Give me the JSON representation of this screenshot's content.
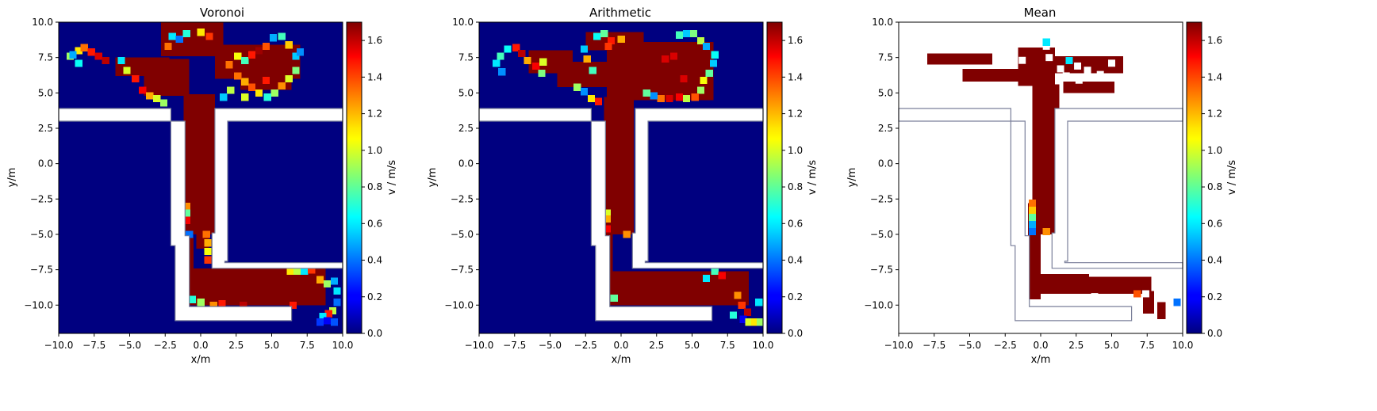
{
  "chart_data": [
    {
      "type": "heatmap",
      "title": "Voronoi",
      "xlabel": "x/m",
      "ylabel": "y/m",
      "xlim": [
        -10,
        10
      ],
      "ylim": [
        -12,
        10
      ],
      "xticks": [
        "−10.0",
        "−7.5",
        "−5.0",
        "−2.5",
        "0.0",
        "2.5",
        "5.0",
        "7.5",
        "10.0"
      ],
      "yticks": [
        "−10.0",
        "−7.5",
        "−5.0",
        "−2.5",
        "0.0",
        "2.5",
        "5.0",
        "7.5",
        "10.0"
      ],
      "colorbar": {
        "label": "v / m/s",
        "range": [
          0,
          1.7
        ],
        "ticks": [
          "0.0",
          "0.2",
          "0.4",
          "0.6",
          "0.8",
          "1.0",
          "1.2",
          "1.4",
          "1.6"
        ]
      },
      "colormap": "jet",
      "background_value": 0.0,
      "regions_value_1_7": [
        [
          -2.8,
          7.6,
          1.6,
          10.0
        ],
        [
          -4.0,
          4.8,
          -0.8,
          7.4
        ],
        [
          -6.0,
          6.2,
          -2.2,
          7.5
        ],
        [
          1.0,
          6.0,
          7.0,
          8.4
        ],
        [
          2.8,
          5.2,
          6.4,
          6.4
        ],
        [
          -1.2,
          -5.0,
          1.0,
          4.9
        ],
        [
          -1.2,
          -10.0,
          -0.5,
          -5.2
        ],
        [
          -1.2,
          -10.0,
          8.8,
          -7.4
        ],
        [
          -0.3,
          -6.0,
          0.6,
          -5.0
        ]
      ],
      "cells": [
        [
          -9.2,
          7.6,
          0.9
        ],
        [
          -8.6,
          8.0,
          1.1
        ],
        [
          -8.2,
          8.2,
          1.3
        ],
        [
          -7.7,
          7.9,
          1.45
        ],
        [
          -7.2,
          7.6,
          1.55
        ],
        [
          -6.7,
          7.3,
          1.6
        ],
        [
          -8.6,
          7.1,
          0.65
        ],
        [
          -9.0,
          7.7,
          0.5
        ],
        [
          -5.6,
          7.3,
          0.6
        ],
        [
          -5.2,
          6.6,
          1.0
        ],
        [
          -4.6,
          6.0,
          1.45
        ],
        [
          -4.1,
          5.2,
          1.5
        ],
        [
          -3.6,
          4.8,
          1.2
        ],
        [
          -3.1,
          4.6,
          1.0
        ],
        [
          -2.6,
          4.3,
          0.9
        ],
        [
          -2.0,
          9.0,
          0.6
        ],
        [
          -1.5,
          8.8,
          0.4
        ],
        [
          -2.3,
          8.3,
          1.3
        ],
        [
          -1.0,
          9.2,
          0.7
        ],
        [
          0.0,
          9.3,
          1.1
        ],
        [
          0.6,
          9.0,
          1.4
        ],
        [
          2.0,
          7.0,
          1.3
        ],
        [
          2.6,
          7.6,
          1.05
        ],
        [
          3.1,
          7.3,
          0.75
        ],
        [
          3.6,
          7.7,
          1.45
        ],
        [
          4.1,
          8.0,
          1.65
        ],
        [
          4.6,
          8.3,
          1.35
        ],
        [
          5.1,
          8.9,
          0.5
        ],
        [
          5.7,
          9.0,
          0.75
        ],
        [
          6.2,
          8.4,
          1.15
        ],
        [
          6.7,
          7.6,
          0.55
        ],
        [
          7.0,
          7.9,
          0.45
        ],
        [
          6.7,
          6.6,
          0.85
        ],
        [
          6.2,
          6.0,
          1.0
        ],
        [
          5.7,
          5.5,
          1.25
        ],
        [
          5.2,
          5.0,
          0.9
        ],
        [
          4.7,
          4.7,
          0.7
        ],
        [
          4.1,
          5.0,
          1.1
        ],
        [
          3.6,
          5.4,
          1.35
        ],
        [
          3.1,
          5.8,
          1.2
        ],
        [
          2.6,
          6.2,
          1.3
        ],
        [
          2.1,
          5.2,
          0.95
        ],
        [
          1.6,
          4.7,
          0.55
        ],
        [
          3.1,
          4.7,
          1.0
        ],
        [
          4.6,
          5.9,
          1.45
        ],
        [
          -1.0,
          -3.0,
          1.25
        ],
        [
          -1.0,
          -3.5,
          0.8
        ],
        [
          -1.0,
          -4.0,
          1.5
        ],
        [
          -0.8,
          -5.0,
          0.4
        ],
        [
          0.4,
          -5.0,
          1.3
        ],
        [
          0.5,
          -5.6,
          1.2
        ],
        [
          0.5,
          -6.2,
          1.05
        ],
        [
          0.5,
          -6.8,
          1.4
        ],
        [
          -0.6,
          -9.6,
          0.7
        ],
        [
          0.0,
          -9.8,
          0.9
        ],
        [
          0.9,
          -10.0,
          1.25
        ],
        [
          1.5,
          -9.9,
          1.45
        ],
        [
          3.0,
          -10.0,
          1.6
        ],
        [
          6.5,
          -10.0,
          1.45
        ],
        [
          6.3,
          -7.6,
          1.1
        ],
        [
          6.8,
          -7.6,
          0.95
        ],
        [
          7.3,
          -7.6,
          0.6
        ],
        [
          7.8,
          -7.5,
          1.4
        ],
        [
          8.4,
          -8.2,
          1.2
        ],
        [
          8.9,
          -8.5,
          0.9
        ],
        [
          9.4,
          -8.3,
          0.5
        ],
        [
          9.6,
          -9.0,
          0.6
        ],
        [
          9.6,
          -9.8,
          0.4
        ],
        [
          9.3,
          -10.4,
          0.95
        ],
        [
          9.0,
          -10.6,
          1.45
        ],
        [
          8.6,
          -10.8,
          0.6
        ],
        [
          8.4,
          -11.2,
          0.3
        ],
        [
          8.9,
          -11.1,
          0.2
        ],
        [
          9.4,
          -11.2,
          0.35
        ]
      ]
    },
    {
      "type": "heatmap",
      "title": "Arithmetic",
      "xlabel": "x/m",
      "ylabel": "y/m",
      "xlim": [
        -10,
        10
      ],
      "ylim": [
        -12,
        10
      ],
      "xticks": [
        "−10.0",
        "−7.5",
        "−5.0",
        "−2.5",
        "0.0",
        "2.5",
        "5.0",
        "7.5",
        "10.0"
      ],
      "yticks": [
        "−10.0",
        "−7.5",
        "−5.0",
        "−2.5",
        "0.0",
        "2.5",
        "5.0",
        "7.5",
        "10.0"
      ],
      "colorbar": {
        "label": "v / m/s",
        "range": [
          0,
          1.7
        ],
        "ticks": [
          "0.0",
          "0.2",
          "0.4",
          "0.6",
          "0.8",
          "1.0",
          "1.2",
          "1.4",
          "1.6"
        ]
      },
      "colormap": "jet",
      "background_value": 0.0,
      "regions_value_1_7": [
        [
          -2.5,
          8.0,
          1.6,
          9.3
        ],
        [
          -1.0,
          4.5,
          6.5,
          8.6
        ],
        [
          -4.5,
          5.4,
          -0.9,
          7.2
        ],
        [
          -6.5,
          6.4,
          -3.4,
          8.0
        ],
        [
          -1.2,
          -5.0,
          0.9,
          4.7
        ],
        [
          -1.2,
          -10.0,
          -0.6,
          -5.0
        ],
        [
          -0.8,
          -10.0,
          9.0,
          -7.6
        ],
        [
          -1.2,
          -5.0,
          -0.6,
          -3.0
        ]
      ],
      "cells": [
        [
          -8.0,
          8.1,
          0.65
        ],
        [
          -8.5,
          7.6,
          0.75
        ],
        [
          -8.8,
          7.1,
          0.6
        ],
        [
          -8.4,
          6.5,
          0.45
        ],
        [
          -7.4,
          8.2,
          1.45
        ],
        [
          -7.0,
          7.8,
          1.6
        ],
        [
          -6.6,
          7.3,
          1.2
        ],
        [
          -6.0,
          6.9,
          1.5
        ],
        [
          -5.5,
          7.2,
          1.0
        ],
        [
          -5.6,
          6.4,
          0.85
        ],
        [
          -2.4,
          7.4,
          1.2
        ],
        [
          -2.0,
          6.6,
          0.75
        ],
        [
          -2.6,
          8.1,
          0.55
        ],
        [
          -1.7,
          9.0,
          0.65
        ],
        [
          -1.2,
          9.2,
          0.8
        ],
        [
          -0.7,
          8.7,
          1.45
        ],
        [
          0.0,
          8.8,
          1.2
        ],
        [
          -0.9,
          8.3,
          1.4
        ],
        [
          -3.1,
          5.4,
          0.9
        ],
        [
          -2.6,
          5.1,
          0.45
        ],
        [
          -2.1,
          4.6,
          1.1
        ],
        [
          -1.6,
          4.4,
          1.45
        ],
        [
          4.1,
          9.1,
          0.75
        ],
        [
          4.6,
          9.2,
          0.55
        ],
        [
          5.1,
          9.2,
          0.85
        ],
        [
          5.6,
          8.7,
          0.95
        ],
        [
          6.0,
          8.3,
          0.5
        ],
        [
          6.6,
          7.7,
          0.65
        ],
        [
          6.5,
          7.1,
          0.55
        ],
        [
          6.2,
          6.4,
          0.8
        ],
        [
          5.8,
          5.9,
          1.05
        ],
        [
          5.6,
          5.2,
          0.9
        ],
        [
          5.2,
          4.7,
          1.35
        ],
        [
          4.6,
          4.6,
          0.95
        ],
        [
          4.1,
          4.7,
          1.5
        ],
        [
          3.4,
          4.6,
          1.55
        ],
        [
          2.8,
          4.6,
          1.3
        ],
        [
          2.3,
          4.8,
          0.45
        ],
        [
          1.8,
          5.0,
          0.8
        ],
        [
          3.1,
          7.4,
          1.55
        ],
        [
          3.7,
          7.6,
          1.55
        ],
        [
          4.4,
          6.0,
          1.55
        ],
        [
          -1.0,
          -3.5,
          1.0
        ],
        [
          -1.0,
          -3.9,
          1.2
        ],
        [
          -1.0,
          -4.6,
          1.5
        ],
        [
          0.4,
          -5.0,
          1.25
        ],
        [
          -0.5,
          -9.5,
          0.8
        ],
        [
          6.0,
          -8.1,
          0.6
        ],
        [
          6.6,
          -7.6,
          0.75
        ],
        [
          7.1,
          -7.9,
          1.5
        ],
        [
          8.2,
          -9.3,
          1.25
        ],
        [
          8.5,
          -10.0,
          1.4
        ],
        [
          8.9,
          -10.5,
          1.6
        ],
        [
          8.6,
          -11.0,
          0.2
        ],
        [
          9.0,
          -11.2,
          1.0
        ],
        [
          9.4,
          -11.2,
          1.1
        ],
        [
          9.8,
          -11.2,
          0.9
        ],
        [
          7.9,
          -10.7,
          0.7
        ],
        [
          9.7,
          -9.8,
          0.6
        ]
      ]
    },
    {
      "type": "heatmap",
      "title": "Mean",
      "xlabel": "x/m",
      "ylabel": "y/m",
      "xlim": [
        -10,
        10
      ],
      "ylim": [
        -12,
        10
      ],
      "xticks": [
        "−10.0",
        "−7.5",
        "−5.0",
        "−2.5",
        "0.0",
        "2.5",
        "5.0",
        "7.5",
        "10.0"
      ],
      "yticks": [
        "−10.0",
        "−7.5",
        "−5.0",
        "−2.5",
        "0.0",
        "2.5",
        "5.0",
        "7.5",
        "10.0"
      ],
      "colorbar": {
        "label": "v / m/s",
        "range": [
          0,
          1.7
        ],
        "ticks": [
          "0.0",
          "0.2",
          "0.4",
          "0.6",
          "0.8",
          "1.0",
          "1.2",
          "1.4",
          "1.6"
        ]
      },
      "colormap": "jet",
      "background_value": null,
      "regions_value_1_7": [
        [
          -1.6,
          5.5,
          1.0,
          8.2
        ],
        [
          -0.6,
          -5.0,
          1.3,
          5.6
        ],
        [
          -0.9,
          -9.6,
          0.0,
          -2.8
        ],
        [
          -0.7,
          -9.2,
          7.8,
          -8.0
        ],
        [
          0.0,
          -9.0,
          3.4,
          -7.8
        ],
        [
          -8.0,
          7.0,
          -3.4,
          7.8
        ],
        [
          -5.5,
          5.8,
          -1.6,
          6.7
        ],
        [
          1.0,
          6.4,
          5.8,
          7.6
        ],
        [
          1.6,
          5.0,
          5.2,
          5.8
        ],
        [
          7.2,
          -10.6,
          8.0,
          -9.0
        ],
        [
          8.2,
          -11.0,
          8.8,
          -9.8
        ]
      ],
      "cells": [
        [
          -0.6,
          -2.8,
          1.3
        ],
        [
          -0.6,
          -3.3,
          1.15
        ],
        [
          -0.6,
          -3.8,
          0.8
        ],
        [
          -0.6,
          -4.3,
          0.5
        ],
        [
          -0.6,
          -4.8,
          0.4
        ],
        [
          0.4,
          -4.8,
          1.25
        ],
        [
          2.0,
          7.3,
          0.6
        ],
        [
          0.4,
          8.6,
          0.6
        ],
        [
          6.8,
          -9.2,
          1.35
        ],
        [
          9.6,
          -9.8,
          0.4
        ]
      ]
    }
  ]
}
